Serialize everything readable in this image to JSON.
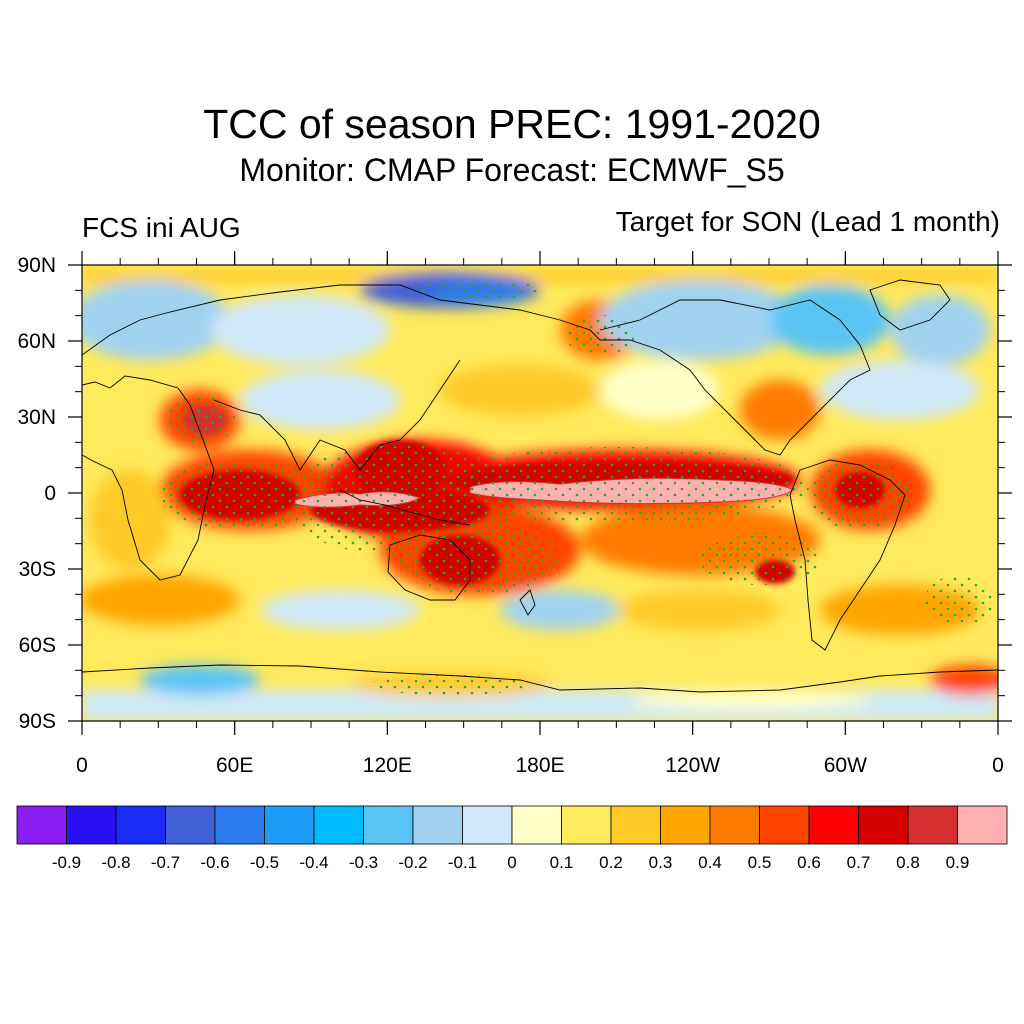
{
  "title": "TCC of season PREC: 1991-2020",
  "subtitle": "Monitor: CMAP   Forecast: ECMWF_S5",
  "left_label": "FCS ini AUG",
  "right_label": "Target for SON (Lead 1 month)",
  "map": {
    "projection": "cylindrical-equidistant",
    "lon_range": [
      0,
      360
    ],
    "lat_range": [
      -90,
      90
    ],
    "lat_ticks": [
      {
        "value": 90,
        "label": "90N"
      },
      {
        "value": 60,
        "label": "60N"
      },
      {
        "value": 30,
        "label": "30N"
      },
      {
        "value": 0,
        "label": "0"
      },
      {
        "value": -30,
        "label": "30S"
      },
      {
        "value": -60,
        "label": "60S"
      },
      {
        "value": -90,
        "label": "90S"
      }
    ],
    "lon_ticks": [
      {
        "value": 0,
        "label": "0"
      },
      {
        "value": 60,
        "label": "60E"
      },
      {
        "value": 120,
        "label": "120E"
      },
      {
        "value": 180,
        "label": "180E"
      },
      {
        "value": 240,
        "label": "120W"
      },
      {
        "value": 300,
        "label": "60W"
      },
      {
        "value": 360,
        "label": "0"
      }
    ],
    "stipple_color": "#22aa22",
    "coastline_color": "#000000"
  },
  "colorbar": {
    "colors": [
      "#8a1ef0",
      "#2a10f2",
      "#1a2cf5",
      "#4060d8",
      "#2b7bef",
      "#1f9bf8",
      "#00bbff",
      "#5cc4f4",
      "#a0d2f0",
      "#cfe8f8",
      "#ffffc8",
      "#ffe95c",
      "#ffc926",
      "#ffa500",
      "#ff7b00",
      "#ff4400",
      "#ff0000",
      "#d40000",
      "#d43030",
      "#ffb0b0"
    ],
    "labels": [
      "-0.9",
      "-0.8",
      "-0.7",
      "-0.6",
      "-0.5",
      "-0.4",
      "-0.3",
      "-0.2",
      "-0.1",
      "0",
      "0.1",
      "0.2",
      "0.3",
      "0.4",
      "0.5",
      "0.6",
      "0.7",
      "0.8",
      "0.9"
    ]
  }
}
